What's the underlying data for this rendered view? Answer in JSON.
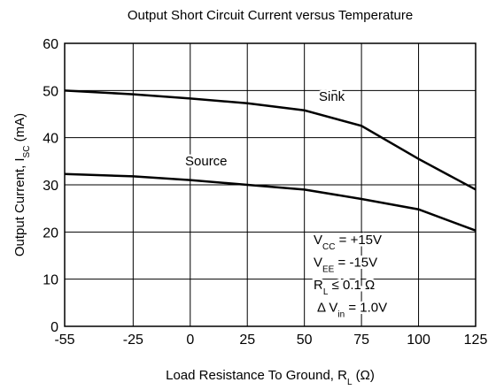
{
  "chart_data": {
    "type": "line",
    "title": "Output Short Circuit Current versus Temperature",
    "x_label": [
      "Load Resistance To Ground, R",
      "L",
      "  (Ω)"
    ],
    "y_label": [
      "Output Current, I",
      "SC",
      " (mA)"
    ],
    "x": [
      -55,
      -25,
      0,
      25,
      50,
      75,
      100,
      125
    ],
    "series": [
      {
        "name": "Sink",
        "color": "#000000",
        "values": [
          50,
          49.2,
          48.3,
          47.3,
          45.8,
          42.5,
          35.5,
          29
        ]
      },
      {
        "name": "Source",
        "color": "#000000",
        "values": [
          32.3,
          31.8,
          31,
          30,
          29,
          27,
          24.8,
          20.3
        ]
      }
    ],
    "annotations": [
      [
        "V",
        "CC",
        " = +15V"
      ],
      [
        "V",
        "EE",
        " = -15V"
      ],
      [
        "R",
        "L",
        " ≤ 0.1 Ω"
      ],
      [
        "Δ V",
        "in",
        " = 1.0V"
      ]
    ],
    "xlim": [
      -55,
      125
    ],
    "xticks": [
      -55,
      -25,
      0,
      25,
      50,
      75,
      100,
      125
    ],
    "ylim": [
      0,
      60
    ],
    "yticks": [
      0,
      10,
      20,
      30,
      40,
      50,
      60
    ],
    "grid": true
  }
}
